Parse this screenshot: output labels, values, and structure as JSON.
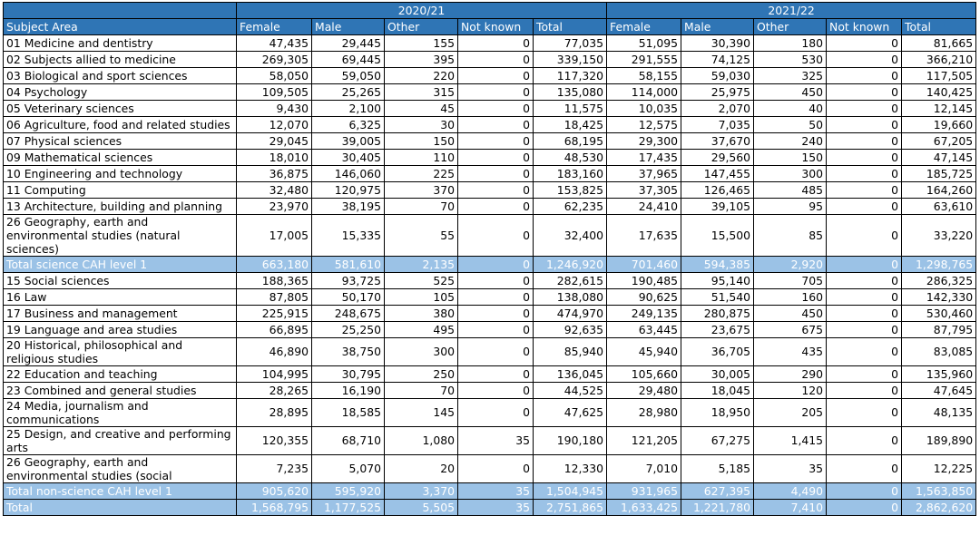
{
  "years": [
    "2020/21",
    "2021/22"
  ],
  "columns": [
    "Subject Area",
    "Female",
    "Male",
    "Other",
    "Not known",
    "Total",
    "Female",
    "Male",
    "Other",
    "Not known",
    "Total"
  ],
  "rows": [
    {
      "type": "data",
      "lines": 1,
      "cells": [
        "01 Medicine and dentistry",
        "47,435",
        "29,445",
        "155",
        "0",
        "77,035",
        "51,095",
        "30,390",
        "180",
        "0",
        "81,665"
      ]
    },
    {
      "type": "data",
      "lines": 1,
      "cells": [
        "02 Subjects allied to medicine",
        "269,305",
        "69,445",
        "395",
        "0",
        "339,150",
        "291,555",
        "74,125",
        "530",
        "0",
        "366,210"
      ]
    },
    {
      "type": "data",
      "lines": 1,
      "cells": [
        "03 Biological and sport sciences",
        "58,050",
        "59,050",
        "220",
        "0",
        "117,320",
        "58,155",
        "59,030",
        "325",
        "0",
        "117,505"
      ]
    },
    {
      "type": "data",
      "lines": 1,
      "cells": [
        "04 Psychology",
        "109,505",
        "25,265",
        "315",
        "0",
        "135,080",
        "114,000",
        "25,975",
        "450",
        "0",
        "140,425"
      ]
    },
    {
      "type": "data",
      "lines": 1,
      "cells": [
        "05 Veterinary sciences",
        "9,430",
        "2,100",
        "45",
        "0",
        "11,575",
        "10,035",
        "2,070",
        "40",
        "0",
        "12,145"
      ]
    },
    {
      "type": "data",
      "lines": 2,
      "cells": [
        "06 Agriculture, food and related studies",
        "12,070",
        "6,325",
        "30",
        "0",
        "18,425",
        "12,575",
        "7,035",
        "50",
        "0",
        "19,660"
      ]
    },
    {
      "type": "data",
      "lines": 1,
      "cells": [
        "07 Physical sciences",
        "29,045",
        "39,005",
        "150",
        "0",
        "68,195",
        "29,300",
        "37,670",
        "240",
        "0",
        "67,205"
      ]
    },
    {
      "type": "data",
      "lines": 1,
      "cells": [
        "09 Mathematical sciences",
        "18,010",
        "30,405",
        "110",
        "0",
        "48,530",
        "17,435",
        "29,560",
        "150",
        "0",
        "47,145"
      ]
    },
    {
      "type": "data",
      "lines": 1,
      "cells": [
        "10 Engineering and technology",
        "36,875",
        "146,060",
        "225",
        "0",
        "183,160",
        "37,965",
        "147,455",
        "300",
        "0",
        "185,725"
      ]
    },
    {
      "type": "data",
      "lines": 1,
      "cells": [
        "11 Computing",
        "32,480",
        "120,975",
        "370",
        "0",
        "153,825",
        "37,305",
        "126,465",
        "485",
        "0",
        "164,260"
      ]
    },
    {
      "type": "data",
      "lines": 1,
      "cells": [
        "13 Architecture, building and planning",
        "23,970",
        "38,195",
        "70",
        "0",
        "62,235",
        "24,410",
        "39,105",
        "95",
        "0",
        "63,610"
      ]
    },
    {
      "type": "data",
      "lines": 3,
      "cells": [
        "26 Geography, earth and environmental studies (natural sciences)",
        "17,005",
        "15,335",
        "55",
        "0",
        "32,400",
        "17,635",
        "15,500",
        "85",
        "0",
        "33,220"
      ]
    },
    {
      "type": "subtotal",
      "lines": 1,
      "cells": [
        "Total science CAH level 1",
        "663,180",
        "581,610",
        "2,135",
        "0",
        "1,246,920",
        "701,460",
        "594,385",
        "2,920",
        "0",
        "1,298,765"
      ]
    },
    {
      "type": "data",
      "lines": 1,
      "cells": [
        "15 Social sciences",
        "188,365",
        "93,725",
        "525",
        "0",
        "282,615",
        "190,485",
        "95,140",
        "705",
        "0",
        "286,325"
      ]
    },
    {
      "type": "data",
      "lines": 1,
      "cells": [
        "16 Law",
        "87,805",
        "50,170",
        "105",
        "0",
        "138,080",
        "90,625",
        "51,540",
        "160",
        "0",
        "142,330"
      ]
    },
    {
      "type": "data",
      "lines": 1,
      "cells": [
        "17 Business and management",
        "225,915",
        "248,675",
        "380",
        "0",
        "474,970",
        "249,135",
        "280,875",
        "450",
        "0",
        "530,460"
      ]
    },
    {
      "type": "data",
      "lines": 1,
      "cells": [
        "19 Language and area studies",
        "66,895",
        "25,250",
        "495",
        "0",
        "92,635",
        "63,445",
        "23,675",
        "675",
        "0",
        "87,795"
      ]
    },
    {
      "type": "data",
      "lines": 2,
      "cells": [
        "20 Historical, philosophical and religious studies",
        "46,890",
        "38,750",
        "300",
        "0",
        "85,940",
        "45,940",
        "36,705",
        "435",
        "0",
        "83,085"
      ]
    },
    {
      "type": "data",
      "lines": 1,
      "cells": [
        "22 Education and teaching",
        "104,995",
        "30,795",
        "250",
        "0",
        "136,045",
        "105,660",
        "30,005",
        "290",
        "0",
        "135,960"
      ]
    },
    {
      "type": "data",
      "lines": 1,
      "cells": [
        "23 Combined and general studies",
        "28,265",
        "16,190",
        "70",
        "0",
        "44,525",
        "29,480",
        "18,045",
        "120",
        "0",
        "47,645"
      ]
    },
    {
      "type": "data",
      "lines": 2,
      "cells": [
        "24 Media, journalism and communications",
        "28,895",
        "18,585",
        "145",
        "0",
        "47,625",
        "28,980",
        "18,950",
        "205",
        "0",
        "48,135"
      ]
    },
    {
      "type": "data",
      "lines": 2,
      "cells": [
        "25 Design, and creative and performing arts",
        "120,355",
        "68,710",
        "1,080",
        "35",
        "190,180",
        "121,205",
        "67,275",
        "1,415",
        "0",
        "189,890"
      ]
    },
    {
      "type": "data",
      "lines": 2,
      "cells": [
        "26 Geography, earth and environmental studies (social",
        "7,235",
        "5,070",
        "20",
        "0",
        "12,330",
        "7,010",
        "5,185",
        "35",
        "0",
        "12,225"
      ]
    },
    {
      "type": "subtotal",
      "lines": 1,
      "cells": [
        "Total non-science CAH level 1",
        "905,620",
        "595,920",
        "3,370",
        "35",
        "1,504,945",
        "931,965",
        "627,395",
        "4,490",
        "0",
        "1,563,850"
      ]
    },
    {
      "type": "subtotal",
      "lines": 1,
      "cells": [
        "Total",
        "1,568,795",
        "1,177,525",
        "5,505",
        "35",
        "2,751,865",
        "1,633,425",
        "1,221,780",
        "7,410",
        "0",
        "2,862,620"
      ]
    }
  ]
}
